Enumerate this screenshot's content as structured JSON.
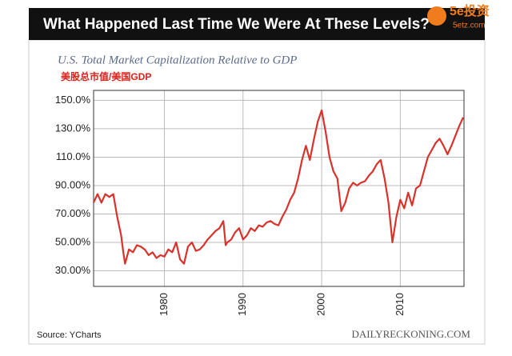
{
  "header": {
    "title": "What Happened Last Time We Were At These Levels?"
  },
  "watermark": {
    "brand": "5e投资",
    "site": "5etz.com"
  },
  "chart_data": {
    "type": "line",
    "subtitle": "U.S. Total Market Capitalization Relative to GDP",
    "annotation": "美股总市值/美国GDP",
    "x": [
      1971.0,
      1971.5,
      1972.0,
      1972.5,
      1973.0,
      1973.5,
      1974.0,
      1974.5,
      1974.8,
      1975.0,
      1975.5,
      1976.0,
      1976.5,
      1977.0,
      1977.5,
      1978.0,
      1978.5,
      1979.0,
      1979.5,
      1980.0,
      1980.5,
      1981.0,
      1981.5,
      1982.0,
      1982.5,
      1983.0,
      1983.5,
      1984.0,
      1984.5,
      1985.0,
      1985.5,
      1986.0,
      1986.5,
      1987.0,
      1987.5,
      1987.8,
      1988.0,
      1988.5,
      1989.0,
      1989.5,
      1990.0,
      1990.5,
      1991.0,
      1991.5,
      1992.0,
      1992.5,
      1993.0,
      1993.5,
      1994.0,
      1994.5,
      1995.0,
      1995.5,
      1996.0,
      1996.5,
      1997.0,
      1997.5,
      1998.0,
      1998.5,
      1999.0,
      1999.5,
      2000.0,
      2000.5,
      2001.0,
      2001.5,
      2002.0,
      2002.5,
      2003.0,
      2003.5,
      2004.0,
      2004.5,
      2005.0,
      2005.5,
      2006.0,
      2006.5,
      2007.0,
      2007.5,
      2008.0,
      2008.5,
      2009.0,
      2009.5,
      2010.0,
      2010.5,
      2011.0,
      2011.5,
      2012.0,
      2012.5,
      2013.0,
      2013.5,
      2014.0,
      2014.5,
      2015.0,
      2015.5,
      2016.0,
      2016.5,
      2017.0,
      2017.5,
      2018.0
    ],
    "series": [
      {
        "name": "Market Cap / GDP",
        "color": "#d9322b",
        "values": [
          78,
          84,
          78,
          84,
          82,
          84,
          68,
          55,
          42,
          35,
          45,
          43,
          48,
          47,
          45,
          41,
          43,
          39,
          41,
          40,
          45,
          43,
          50,
          38,
          35,
          47,
          50,
          44,
          45,
          48,
          52,
          55,
          58,
          60,
          65,
          48,
          50,
          52,
          57,
          60,
          52,
          55,
          60,
          58,
          62,
          61,
          64,
          65,
          63,
          62,
          68,
          73,
          80,
          85,
          95,
          108,
          118,
          108,
          122,
          135,
          143,
          128,
          110,
          100,
          95,
          72,
          78,
          88,
          92,
          90,
          92,
          93,
          97,
          100,
          105,
          108,
          95,
          78,
          50,
          68,
          80,
          74,
          85,
          76,
          88,
          90,
          100,
          110,
          115,
          120,
          123,
          118,
          112,
          118,
          125,
          132,
          138
        ]
      }
    ],
    "xlim": [
      1971,
      2018.1
    ],
    "xticks": [
      1980,
      1990,
      2000,
      2010
    ],
    "ylim": [
      19,
      157
    ],
    "yticks": [
      {
        "value": 30,
        "label": "30.00%"
      },
      {
        "value": 50,
        "label": "50.00%"
      },
      {
        "value": 70,
        "label": "70.00%"
      },
      {
        "value": 90,
        "label": "90.00%"
      },
      {
        "value": 110,
        "label": "110.0%"
      },
      {
        "value": 130,
        "label": "130.0%"
      },
      {
        "value": 150,
        "label": "150.0%"
      }
    ],
    "grid": true,
    "source": "Source: YCharts",
    "credit": "DAILYRECKONING.COM"
  }
}
